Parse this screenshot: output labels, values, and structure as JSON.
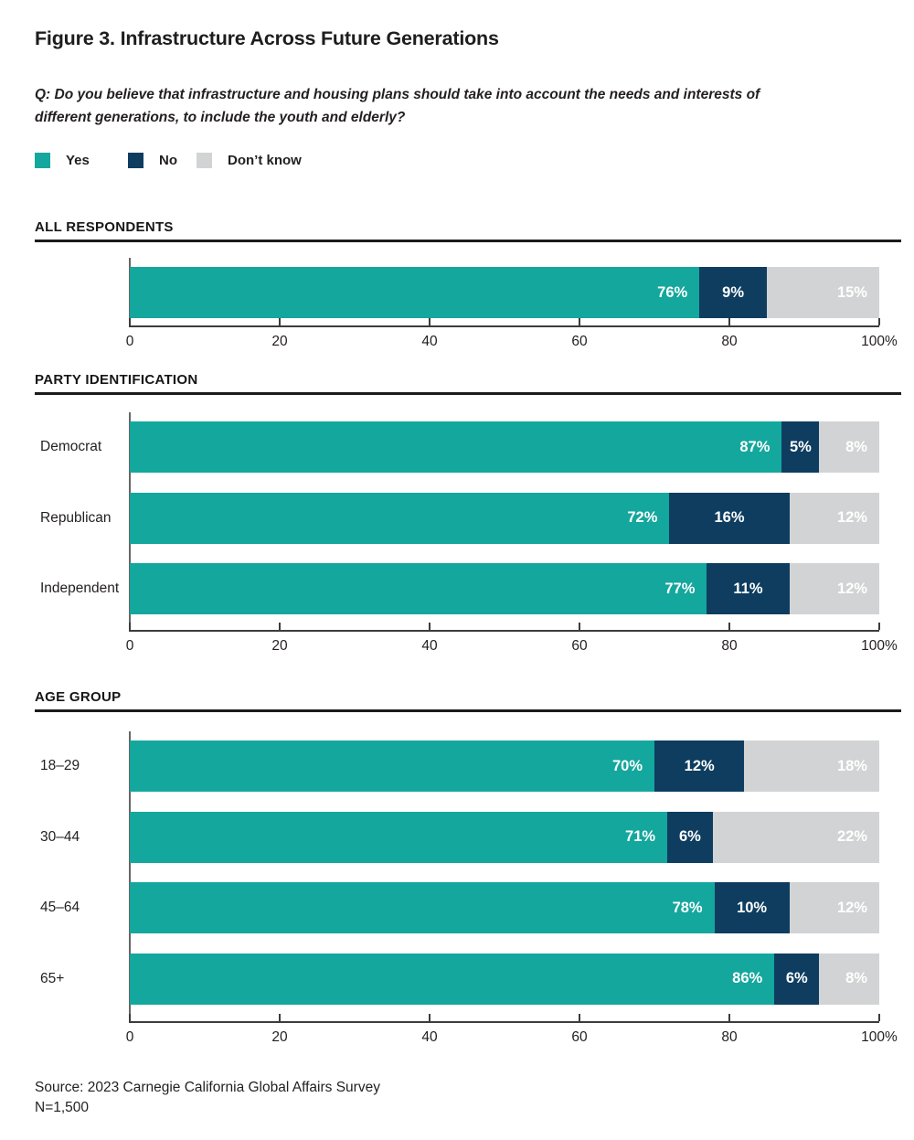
{
  "figure": {
    "title": "Figure 3. Infrastructure Across Future Generations",
    "question": "Q: Do you believe that infrastructure and housing plans should take into account the needs and interests of different generations, to include the youth and elderly?",
    "source": "Source: 2023 Carnegie California Global Affairs Survey",
    "sample_size": "N=1,500"
  },
  "legend": {
    "items": [
      {
        "label": "Yes",
        "color": "#14a79d"
      },
      {
        "label": "No",
        "color": "#0e3d60"
      },
      {
        "label": "Don’t know",
        "color": "#d2d3d4"
      }
    ]
  },
  "colors": {
    "yes": "#14a79d",
    "no": "#0e3d60",
    "dont_know": "#d2d3d4",
    "text": "#231f20",
    "heading_rule": "#1b1b1b",
    "axis": "#3c3c3c"
  },
  "axis": {
    "tick_labels": [
      "0",
      "20",
      "40",
      "60",
      "80",
      "100%"
    ],
    "range": [
      0,
      100
    ]
  },
  "chart_data": [
    {
      "type": "bar",
      "orientation": "horizontal",
      "stacked": true,
      "title": "ALL RESPONDENTS",
      "categories": [
        ""
      ],
      "series": [
        {
          "name": "Yes",
          "values": [
            76
          ]
        },
        {
          "name": "No",
          "values": [
            9
          ]
        },
        {
          "name": "Don’t know",
          "values": [
            15
          ]
        }
      ],
      "xlim": [
        0,
        100
      ],
      "unit": "%"
    },
    {
      "type": "bar",
      "orientation": "horizontal",
      "stacked": true,
      "title": "PARTY IDENTIFICATION",
      "categories": [
        "Democrat",
        "Republican",
        "Independent"
      ],
      "series": [
        {
          "name": "Yes",
          "values": [
            87,
            72,
            77
          ]
        },
        {
          "name": "No",
          "values": [
            5,
            16,
            11
          ]
        },
        {
          "name": "Don’t know",
          "values": [
            8,
            12,
            12
          ]
        }
      ],
      "xlim": [
        0,
        100
      ],
      "unit": "%"
    },
    {
      "type": "bar",
      "orientation": "horizontal",
      "stacked": true,
      "title": "AGE GROUP",
      "categories": [
        "18–29",
        "30–44",
        "45–64",
        "65+"
      ],
      "series": [
        {
          "name": "Yes",
          "values": [
            70,
            71,
            78,
            86
          ]
        },
        {
          "name": "No",
          "values": [
            12,
            6,
            10,
            6
          ]
        },
        {
          "name": "Don’t know",
          "values": [
            18,
            22,
            12,
            8
          ]
        }
      ],
      "xlim": [
        0,
        100
      ],
      "unit": "%"
    }
  ]
}
